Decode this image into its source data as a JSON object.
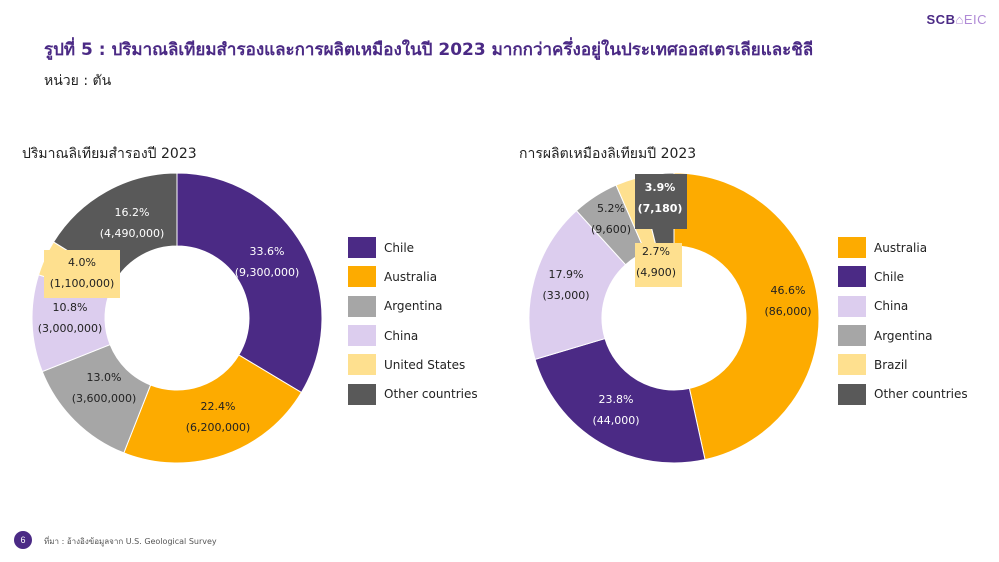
{
  "header": {
    "logo_main": "SCB",
    "logo_mark": "⌂",
    "logo_sub": "EIC",
    "title": "รูปที่ 5 : ปริมาณลิเทียมสำรองและการผลิตเหมืองในปี 2023 มากกว่าครึ่งอยู่ในประเทศออสเตรเลียและชิลี",
    "unit": "หน่วย : ตัน"
  },
  "colors": {
    "purple": "#4b2a85",
    "orange": "#fdab00",
    "gray": "#a6a6a6",
    "lavender": "#dccdee",
    "yellow": "#fee08f",
    "darkgray": "#595959"
  },
  "chart_data": [
    {
      "type": "pie",
      "title": "ปริมาณลิเทียมสำรองปี 2023",
      "slices": [
        {
          "name": "Chile",
          "percent_label": "33.6%",
          "value_label": "(9,300,000)",
          "value": 9300000,
          "color": "#4b2a85",
          "label_color": "#ffffff"
        },
        {
          "name": "Australia",
          "percent_label": "22.4%",
          "value_label": "(6,200,000)",
          "value": 6200000,
          "color": "#fdab00",
          "label_color": "#222222"
        },
        {
          "name": "Argentina",
          "percent_label": "13.0%",
          "value_label": "(3,600,000)",
          "value": 3600000,
          "color": "#a6a6a6",
          "label_color": "#222222"
        },
        {
          "name": "China",
          "percent_label": "10.8%",
          "value_label": "(3,000,000)",
          "value": 3000000,
          "color": "#dccdee",
          "label_color": "#222222"
        },
        {
          "name": "United States",
          "percent_label": "4.0%",
          "value_label": "(1,100,000)",
          "value": 1100000,
          "color": "#fee08f",
          "label_color": "#222222"
        },
        {
          "name": "Other countries",
          "percent_label": "16.2%",
          "value_label": "(4,490,000)",
          "value": 4490000,
          "color": "#595959",
          "label_color": "#ffffff"
        }
      ]
    },
    {
      "type": "pie",
      "title": "การผลิตเหมืองลิเทียมปี 2023",
      "slices": [
        {
          "name": "Australia",
          "percent_label": "46.6%",
          "value_label": "(86,000)",
          "value": 86000,
          "color": "#fdab00",
          "label_color": "#222222"
        },
        {
          "name": "Chile",
          "percent_label": "23.8%",
          "value_label": "(44,000)",
          "value": 44000,
          "color": "#4b2a85",
          "label_color": "#ffffff"
        },
        {
          "name": "China",
          "percent_label": "17.9%",
          "value_label": "(33,000)",
          "value": 33000,
          "color": "#dccdee",
          "label_color": "#222222"
        },
        {
          "name": "Argentina",
          "percent_label": "5.2%",
          "value_label": "(9,600)",
          "value": 9600,
          "color": "#a6a6a6",
          "label_color": "#222222"
        },
        {
          "name": "Brazil",
          "percent_label": "2.7%",
          "value_label": "(4,900)",
          "value": 4900,
          "color": "#fee08f",
          "label_color": "#222222"
        },
        {
          "name": "Other countries",
          "percent_label": "3.9%",
          "value_label": "(7,180)",
          "value": 7180,
          "color": "#595959",
          "label_color": "#ffffff"
        }
      ]
    }
  ],
  "footer": {
    "page_number": "6",
    "source": "ที่มา : อ้างอิงข้อมูลจาก U.S. Geological Survey"
  }
}
